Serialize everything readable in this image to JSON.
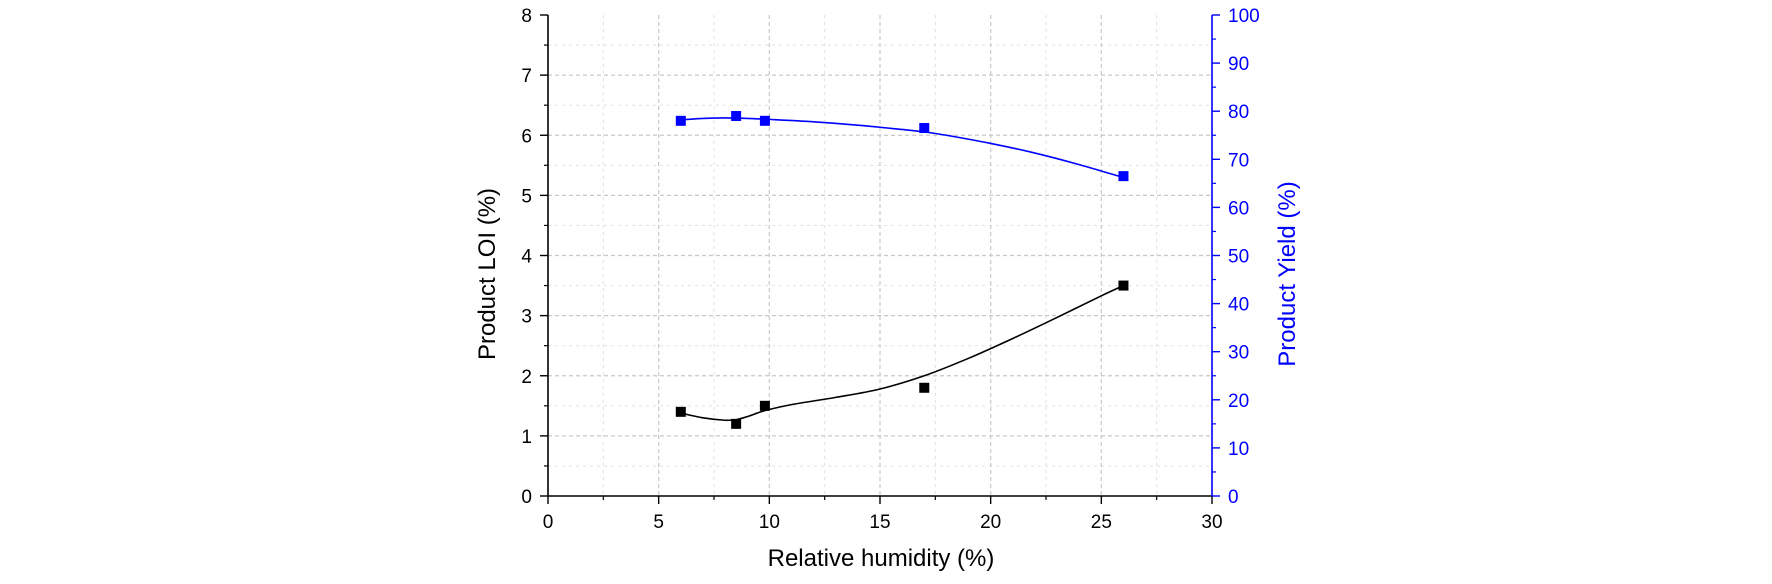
{
  "chart_data": {
    "type": "scatter",
    "title": "",
    "xlabel": "Relative humidity (%)",
    "ylabel": "Product LOI (%)",
    "y2label": "Product Yield (%)",
    "xlim": [
      0,
      30
    ],
    "ylim": [
      0,
      8
    ],
    "y2lim": [
      0,
      100
    ],
    "x_ticks": [
      0,
      5,
      10,
      15,
      20,
      25,
      30
    ],
    "y_ticks": [
      0,
      1,
      2,
      3,
      4,
      5,
      6,
      7,
      8
    ],
    "y2_ticks": [
      0,
      10,
      20,
      30,
      40,
      50,
      60,
      70,
      80,
      90,
      100
    ],
    "grid": true,
    "series": [
      {
        "name": "Product LOI",
        "axis": "left",
        "color": "#000000",
        "marker": "square",
        "x": [
          6,
          8.5,
          9.8,
          17,
          26
        ],
        "y": [
          1.4,
          1.2,
          1.5,
          1.8,
          3.5
        ],
        "fit_x": [
          6,
          7,
          8,
          8.5,
          9,
          9.8,
          11,
          13,
          15,
          17,
          19,
          21,
          23,
          25,
          26
        ],
        "fit_y": [
          1.38,
          1.3,
          1.26,
          1.27,
          1.32,
          1.42,
          1.52,
          1.64,
          1.78,
          2.0,
          2.29,
          2.62,
          2.97,
          3.33,
          3.5
        ]
      },
      {
        "name": "Product Yield",
        "axis": "right",
        "color": "#0000ff",
        "marker": "square",
        "x": [
          6,
          8.5,
          9.8,
          17,
          26
        ],
        "y": [
          78,
          79,
          78,
          76.5,
          66.5
        ],
        "fit_x": [
          6,
          7,
          8,
          9,
          10,
          12,
          14,
          16,
          17,
          18,
          20,
          22,
          24,
          26
        ],
        "fit_y": [
          78.2,
          78.5,
          78.6,
          78.5,
          78.3,
          77.8,
          77.1,
          76.2,
          75.7,
          75.0,
          73.3,
          71.3,
          68.9,
          66.2
        ]
      }
    ]
  }
}
